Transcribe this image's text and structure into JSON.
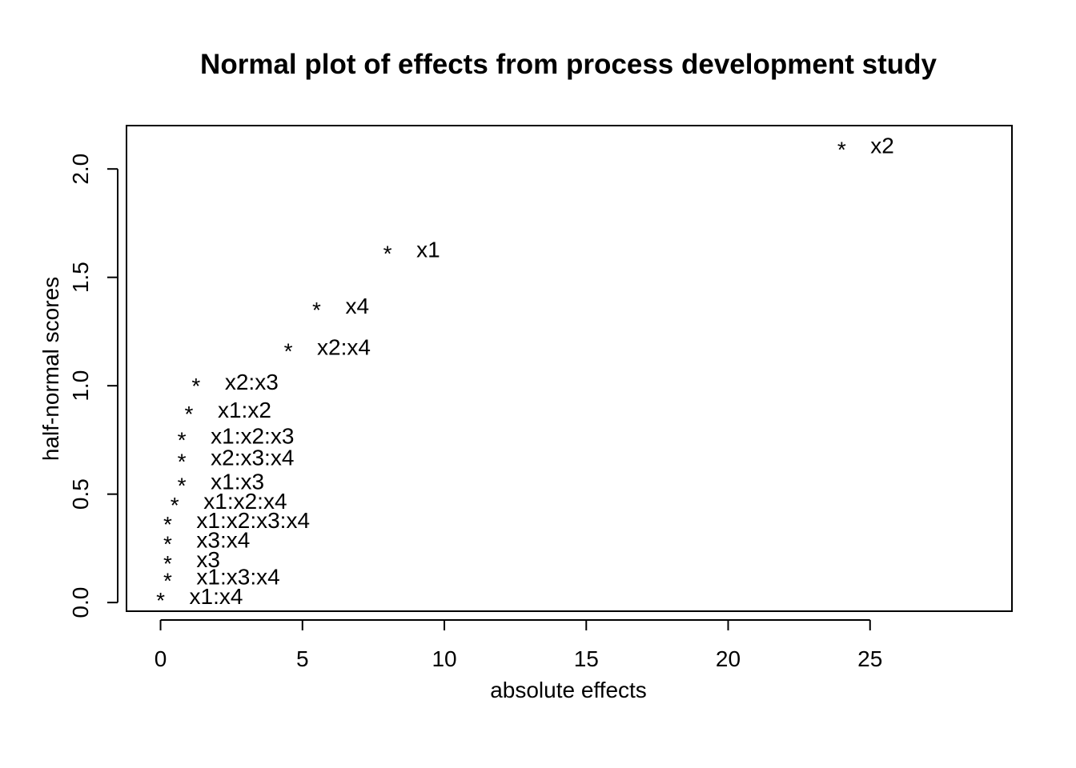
{
  "chart_data": {
    "type": "scatter",
    "title": "Normal plot of effects from process development study",
    "xlabel": "absolute effects",
    "ylabel": "half-normal scores",
    "xlim": [
      -1.2,
      30.0
    ],
    "ylim": [
      -0.04,
      2.2
    ],
    "xticks": [
      0,
      5,
      10,
      15,
      20,
      25
    ],
    "yticks": [
      0.0,
      0.5,
      1.0,
      1.5,
      2.0
    ],
    "xtick_labels": [
      "0",
      "5",
      "10",
      "15",
      "20",
      "25"
    ],
    "ytick_labels": [
      "0.0",
      "0.5",
      "1.0",
      "1.5",
      "2.0"
    ],
    "marker": "*",
    "grid": false,
    "points": [
      {
        "label": "x1:x4",
        "x": 0.0,
        "y": 0.03
      },
      {
        "label": "x1:x3:x4",
        "x": 0.25,
        "y": 0.12
      },
      {
        "label": "x3",
        "x": 0.25,
        "y": 0.2
      },
      {
        "label": "x3:x4",
        "x": 0.25,
        "y": 0.29
      },
      {
        "label": "x1:x2:x3:x4",
        "x": 0.25,
        "y": 0.38
      },
      {
        "label": "x1:x2:x4",
        "x": 0.5,
        "y": 0.47
      },
      {
        "label": "x1:x3",
        "x": 0.75,
        "y": 0.56
      },
      {
        "label": "x2:x3:x4",
        "x": 0.75,
        "y": 0.67
      },
      {
        "label": "x1:x2:x3",
        "x": 0.75,
        "y": 0.77
      },
      {
        "label": "x1:x2",
        "x": 1.0,
        "y": 0.89
      },
      {
        "label": "x2:x3",
        "x": 1.25,
        "y": 1.02
      },
      {
        "label": "x2:x4",
        "x": 4.5,
        "y": 1.18
      },
      {
        "label": "x4",
        "x": 5.5,
        "y": 1.37
      },
      {
        "label": "x1",
        "x": 8.0,
        "y": 1.63
      },
      {
        "label": "x2",
        "x": 24.0,
        "y": 2.11
      }
    ]
  }
}
